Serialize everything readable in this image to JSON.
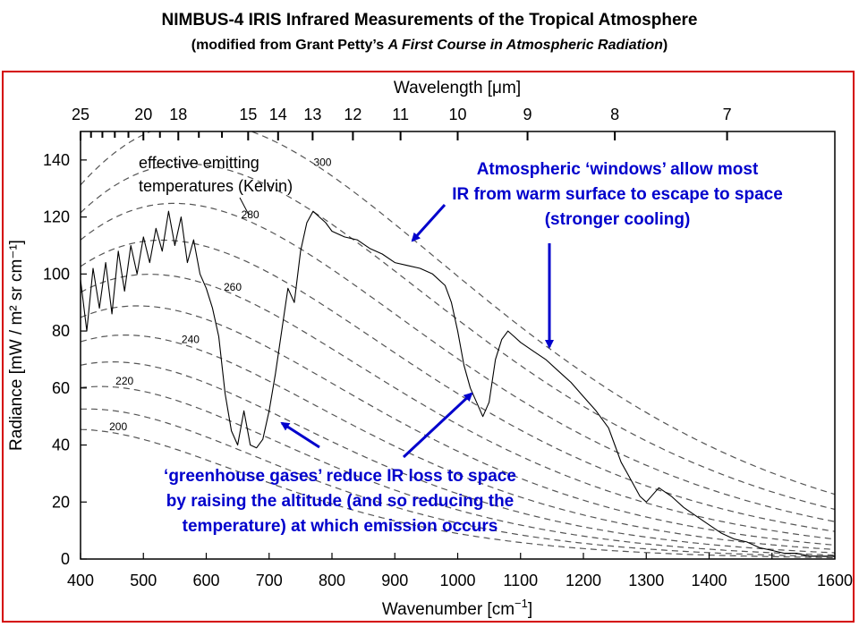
{
  "header": {
    "title": "NIMBUS-4 IRIS Infrared Measurements of the Tropical Atmosphere",
    "subtitle_prefix": "(modified from Grant Petty’s ",
    "subtitle_book": "A First Course in Atmospheric Radiation",
    "subtitle_suffix": ")"
  },
  "chart_data": {
    "type": "line",
    "xlabel_prefix": "Wavenumber [cm",
    "xlabel_sup": "−1",
    "xlabel_suffix": "]",
    "x2label": "Wavelength [μm]",
    "ylabel": "Radiance [mW / m² sr cm⁻¹]",
    "xlim": [
      400,
      1600
    ],
    "ylim": [
      0,
      150
    ],
    "x_ticks": [
      400,
      500,
      600,
      700,
      800,
      900,
      1000,
      1100,
      1200,
      1300,
      1400,
      1500,
      1600
    ],
    "y_ticks": [
      0,
      20,
      40,
      60,
      80,
      100,
      120,
      140
    ],
    "wavelength_ticks": [
      "25",
      "20",
      "18",
      "15",
      "14",
      "13",
      "12",
      "11",
      "10",
      "9",
      "8",
      "7"
    ],
    "wavelength_values": [
      25,
      20,
      18,
      15,
      14,
      13,
      12,
      11,
      10,
      9,
      8,
      7
    ],
    "wavelength_minor_ticks": [
      24,
      23,
      22,
      21,
      19,
      17,
      16
    ],
    "blackbody_temperatures_K": [
      200,
      210,
      220,
      230,
      240,
      250,
      260,
      270,
      280,
      290,
      300
    ],
    "temperature_labels": [
      {
        "text": "200",
        "temperature": 200,
        "x": 460
      },
      {
        "text": "220",
        "temperature": 220,
        "x": 470
      },
      {
        "text": "240",
        "temperature": 240,
        "x": 575
      },
      {
        "text": "260",
        "temperature": 260,
        "x": 642
      },
      {
        "text": "280",
        "temperature": 280,
        "x": 670
      },
      {
        "text": "300",
        "temperature": 300,
        "x": 785
      }
    ],
    "series": [
      {
        "x": [
          400,
          410,
          420,
          430,
          440,
          450,
          460,
          470,
          480,
          490,
          500,
          510,
          520,
          530,
          540,
          550,
          560,
          570,
          580,
          590,
          600,
          610,
          620,
          630,
          640,
          650,
          660,
          670,
          680,
          690,
          700,
          710,
          720,
          730,
          740,
          750,
          760,
          770,
          780,
          790,
          800,
          820,
          840,
          860,
          880,
          900,
          920,
          940,
          960,
          980,
          990,
          1000,
          1010,
          1020,
          1030,
          1040,
          1050,
          1060,
          1070,
          1080,
          1090,
          1100,
          1120,
          1140,
          1160,
          1180,
          1200,
          1220,
          1240,
          1250,
          1260,
          1270,
          1280,
          1290,
          1300,
          1320,
          1340,
          1360,
          1380,
          1400,
          1420,
          1440,
          1460,
          1480,
          1500,
          1520,
          1540,
          1560,
          1580,
          1600
        ],
        "y": [
          98,
          80,
          102,
          88,
          104,
          86,
          108,
          94,
          110,
          100,
          113,
          104,
          116,
          108,
          122,
          110,
          120,
          104,
          112,
          100,
          95,
          88,
          78,
          58,
          45,
          40,
          52,
          40,
          39,
          42,
          52,
          65,
          80,
          95,
          90,
          108,
          118,
          122,
          120,
          118,
          115,
          113,
          112,
          109,
          107,
          104,
          103,
          102,
          100,
          96,
          90,
          80,
          68,
          60,
          55,
          50,
          55,
          70,
          77,
          80,
          78,
          76,
          73,
          70,
          66,
          62,
          57,
          52,
          46,
          40,
          34,
          30,
          26,
          22,
          20,
          25,
          22,
          18,
          15,
          12,
          9,
          7,
          6,
          4,
          3,
          2,
          2,
          1,
          1,
          1
        ]
      }
    ],
    "annotations": {
      "effective_emitting": [
        "effective emitting",
        "temperatures (Kelvin)"
      ],
      "windows": [
        "Atmospheric ‘windows’ allow most",
        "IR from warm surface to escape to space",
        "(stronger cooling)"
      ],
      "greenhouse": [
        "‘greenhouse gases’ reduce IR loss to space",
        "by raising the altitude  (and so reducing the",
        "temperature) at which emission occurs"
      ]
    },
    "grid": false,
    "legend": "none",
    "colors": {
      "measurement": "#000000",
      "blackbody": "#555555",
      "annotation": "#0000cc",
      "frame": "#d40000"
    }
  }
}
